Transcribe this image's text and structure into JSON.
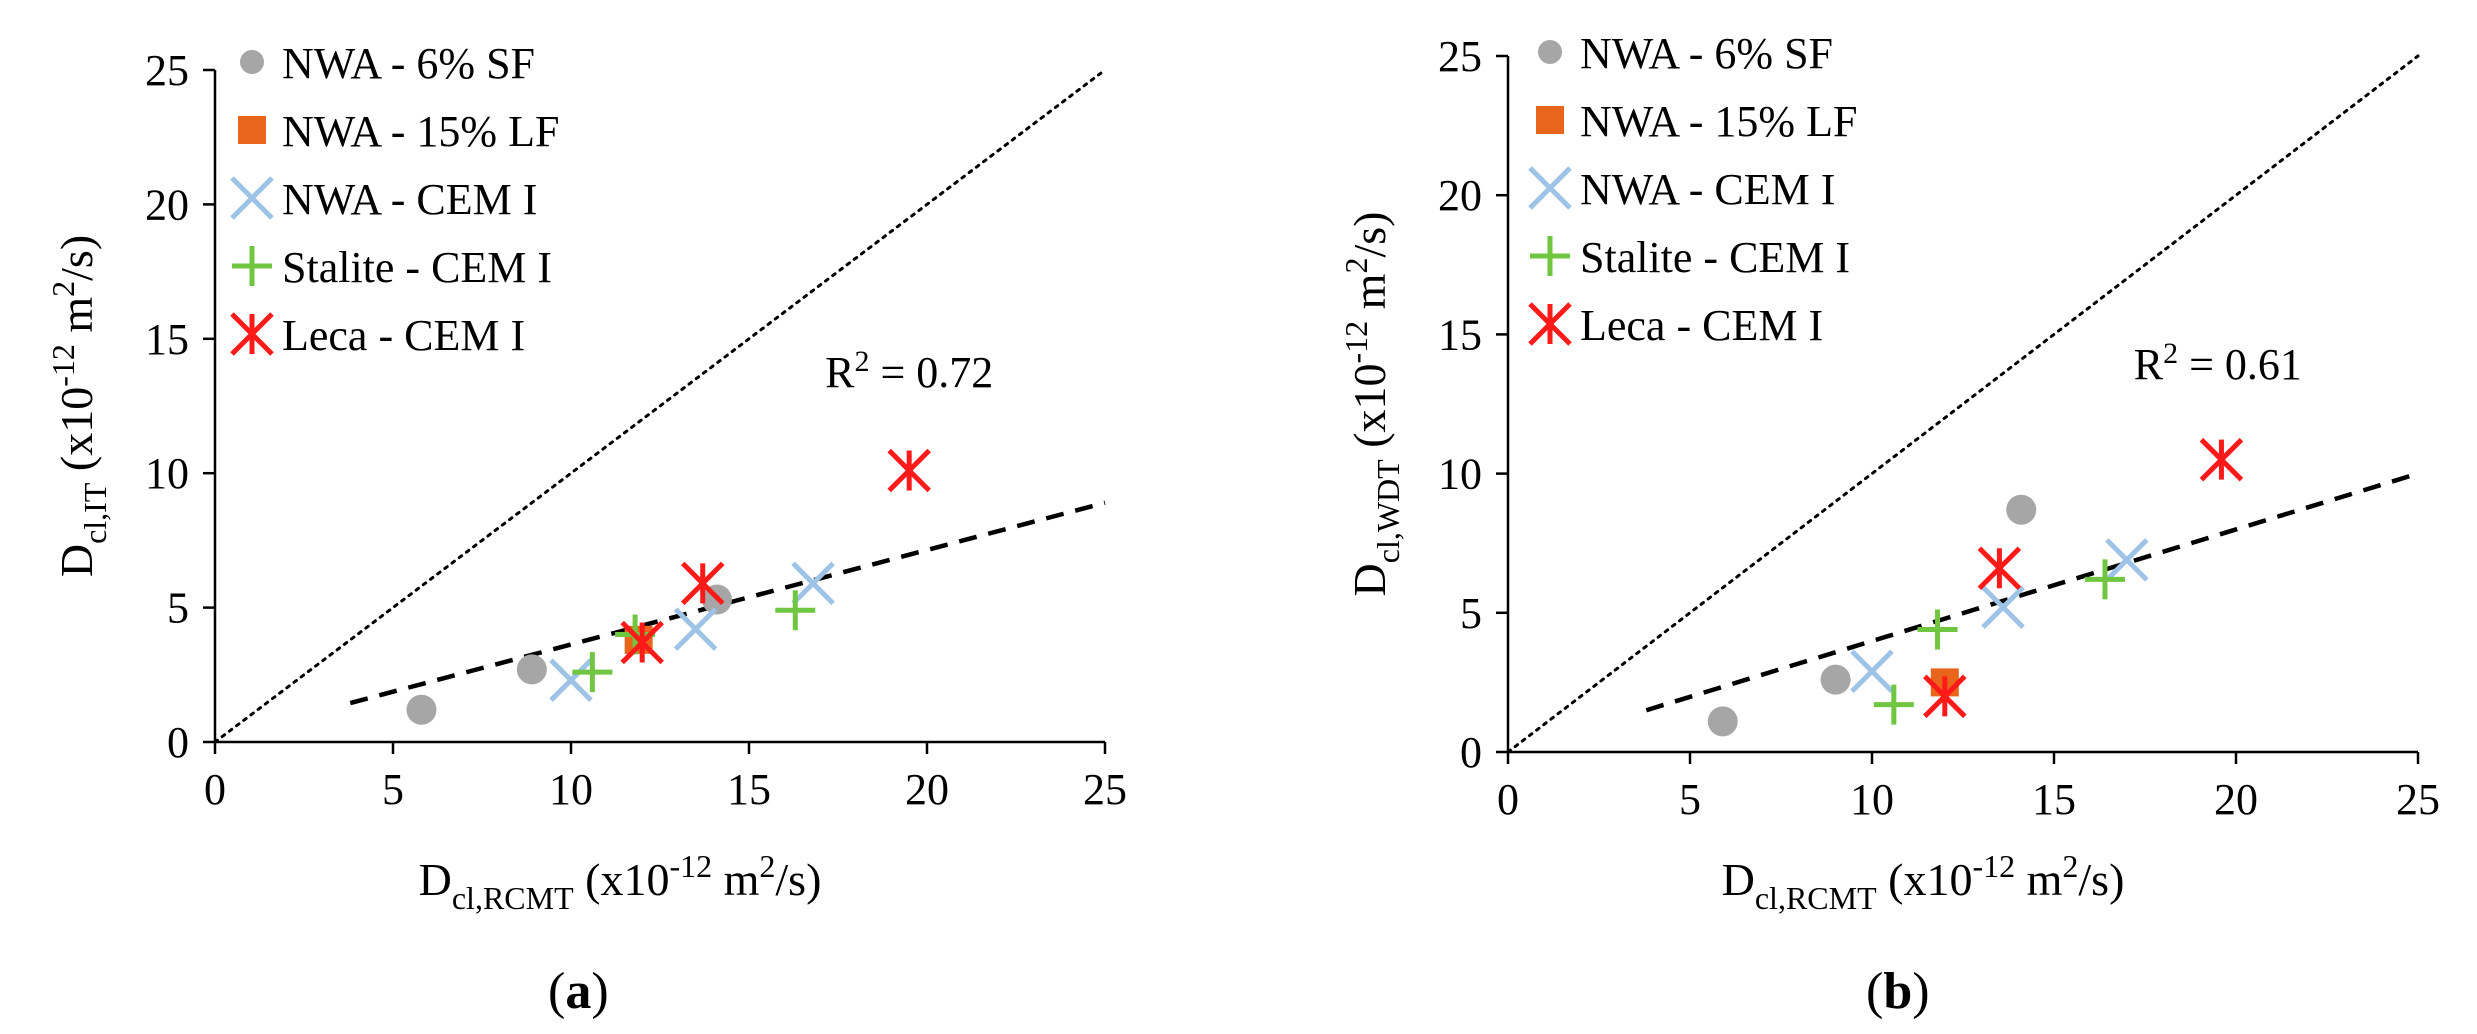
{
  "chart_data": [
    {
      "type": "scatter",
      "panel_label": "a",
      "xlabel": {
        "main": "D",
        "sub": "cl,RCMT",
        "rest": " (x10",
        "sup": "-12",
        "unit": " m",
        "unit_sup": "2",
        "tail": "/s)"
      },
      "ylabel": {
        "main": "D",
        "sub": "cl,IT",
        "rest": " (x10",
        "sup": "-12",
        "unit": " m",
        "unit_sup": "2",
        "tail": "/s)"
      },
      "xlim": [
        0,
        25
      ],
      "ylim": [
        0,
        25
      ],
      "xticks": [
        "0",
        "5",
        "10",
        "15",
        "20",
        "25"
      ],
      "yticks": [
        "0",
        "5",
        "10",
        "15",
        "20",
        "25"
      ],
      "legend_position": "top-left",
      "annotation": {
        "main": "R",
        "sup": "2",
        "rest": " = 0.72"
      },
      "annotation_at": {
        "x": 19.5,
        "y": 13.2
      },
      "reference_line": {
        "from": [
          0,
          0
        ],
        "to": [
          25,
          25
        ],
        "style": "dotted"
      },
      "trend_line": {
        "from": [
          3.8,
          1.45
        ],
        "to": [
          25,
          8.9
        ],
        "style": "dashed"
      },
      "series": [
        {
          "name": "NWA - 6% SF",
          "marker": "circle",
          "color": "#a6a6a6",
          "points": [
            [
              5.8,
              1.2
            ],
            [
              8.9,
              2.7
            ],
            [
              14.1,
              5.3
            ]
          ]
        },
        {
          "name": "NWA - 15% LF",
          "marker": "square",
          "color": "#e8661c",
          "points": [
            [
              11.9,
              3.8
            ]
          ]
        },
        {
          "name": "NWA - CEM I",
          "marker": "x",
          "color": "#9dc3e6",
          "points": [
            [
              10.0,
              2.3
            ],
            [
              13.5,
              4.2
            ],
            [
              16.8,
              5.9
            ]
          ]
        },
        {
          "name": "Stalite - CEM I",
          "marker": "plus",
          "color": "#70c541",
          "points": [
            [
              10.6,
              2.6
            ],
            [
              11.8,
              4.0
            ],
            [
              16.3,
              4.9
            ]
          ]
        },
        {
          "name": "Leca - CEM I",
          "marker": "star",
          "color": "#ff1a1a",
          "points": [
            [
              12.0,
              3.7
            ],
            [
              13.7,
              5.9
            ],
            [
              19.5,
              10.1
            ]
          ]
        }
      ]
    },
    {
      "type": "scatter",
      "panel_label": "b",
      "xlabel": {
        "main": "D",
        "sub": "cl,RCMT",
        "rest": " (x10",
        "sup": "-12",
        "unit": " m",
        "unit_sup": "2",
        "tail": "/s)"
      },
      "ylabel": {
        "main": "D",
        "sub": "cl,WDT",
        "rest": " (x10",
        "sup": "-12",
        "unit": " m",
        "unit_sup": "2",
        "tail": "/s)"
      },
      "xlim": [
        0,
        25
      ],
      "ylim": [
        0,
        25
      ],
      "xticks": [
        "0",
        "5",
        "10",
        "15",
        "20",
        "25"
      ],
      "yticks": [
        "0",
        "5",
        "10",
        "15",
        "20",
        "25"
      ],
      "legend_position": "top-left",
      "annotation": {
        "main": "R",
        "sup": "2",
        "rest": " = 0.61"
      },
      "annotation_at": {
        "x": 19.5,
        "y": 13.4
      },
      "reference_line": {
        "from": [
          0,
          0
        ],
        "to": [
          25,
          25
        ],
        "style": "dotted"
      },
      "trend_line": {
        "from": [
          3.8,
          1.5
        ],
        "to": [
          25,
          10.0
        ],
        "style": "dashed"
      },
      "series": [
        {
          "name": "NWA - 6% SF",
          "marker": "circle",
          "color": "#a6a6a6",
          "points": [
            [
              5.9,
              1.1
            ],
            [
              9.0,
              2.6
            ],
            [
              14.1,
              8.7
            ]
          ]
        },
        {
          "name": "NWA - 15% LF",
          "marker": "square",
          "color": "#e8661c",
          "points": [
            [
              12.0,
              2.5
            ]
          ]
        },
        {
          "name": "NWA - CEM I",
          "marker": "x",
          "color": "#9dc3e6",
          "points": [
            [
              10.0,
              2.9
            ],
            [
              13.6,
              5.2
            ],
            [
              17.0,
              6.9
            ]
          ]
        },
        {
          "name": "Stalite - CEM I",
          "marker": "plus",
          "color": "#70c541",
          "points": [
            [
              10.6,
              1.7
            ],
            [
              11.8,
              4.4
            ],
            [
              16.4,
              6.2
            ]
          ]
        },
        {
          "name": "Leca - CEM I",
          "marker": "star",
          "color": "#ff1a1a",
          "points": [
            [
              12.0,
              2.0
            ],
            [
              13.5,
              6.6
            ],
            [
              19.6,
              10.5
            ]
          ]
        }
      ]
    }
  ]
}
